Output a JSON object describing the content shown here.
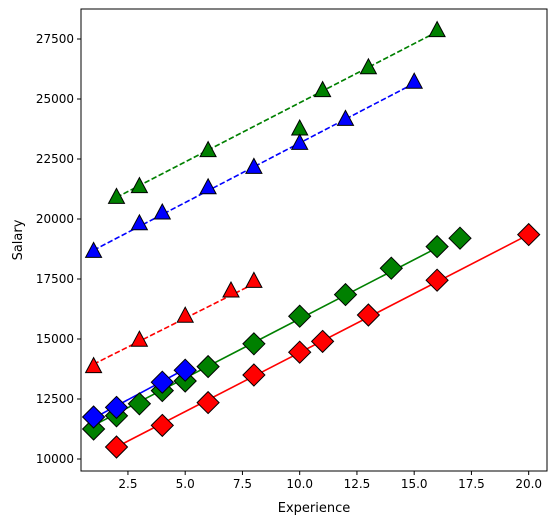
{
  "chart_data": {
    "type": "line",
    "xlabel": "Experience",
    "ylabel": "Salary",
    "xlim": [
      0.45,
      20.8
    ],
    "ylim": [
      9500,
      28750
    ],
    "x_ticks": [
      2.5,
      5.0,
      7.5,
      10.0,
      12.5,
      15.0,
      17.5,
      20.0
    ],
    "x_tick_labels": [
      "2.5",
      "5.0",
      "7.5",
      "10.0",
      "12.5",
      "15.0",
      "17.5",
      "20.0"
    ],
    "y_ticks": [
      10000,
      12500,
      15000,
      17500,
      20000,
      22500,
      25000,
      27500
    ],
    "y_tick_labels": [
      "10000",
      "12500",
      "15000",
      "17500",
      "20000",
      "22500",
      "25000",
      "27500"
    ],
    "grid": false,
    "series": [
      {
        "color": "#008000",
        "marker": "triangle",
        "linestyle": "dashed",
        "x": [
          2,
          3,
          6,
          10,
          11,
          13,
          16
        ],
        "y": [
          20900,
          21350,
          22850,
          23750,
          25350,
          26300,
          27850
        ],
        "fit": [
          [
            2,
            20900
          ],
          [
            16,
            27800
          ]
        ]
      },
      {
        "color": "#0000ff",
        "marker": "triangle",
        "linestyle": "dashed",
        "x": [
          1,
          3,
          4,
          6,
          8,
          10,
          12,
          15
        ],
        "y": [
          18650,
          19800,
          20250,
          21300,
          22150,
          23150,
          24150,
          25700
        ],
        "fit": [
          [
            1,
            18700
          ],
          [
            15,
            25650
          ]
        ]
      },
      {
        "color": "#ff0000",
        "marker": "triangle",
        "linestyle": "dashed",
        "x": [
          1,
          3,
          5,
          7,
          8
        ],
        "y": [
          13850,
          14950,
          15950,
          17000,
          17400
        ],
        "fit": [
          [
            1,
            13950
          ],
          [
            8,
            17300
          ]
        ]
      },
      {
        "color": "#008000",
        "marker": "diamond",
        "linestyle": "solid",
        "x": [
          1,
          2,
          3,
          4,
          5,
          6,
          8,
          10,
          12,
          14,
          16,
          17
        ],
        "y": [
          11250,
          11800,
          12300,
          12850,
          13250,
          13850,
          14800,
          15950,
          16850,
          17950,
          18850,
          19200
        ],
        "fit": [
          [
            1,
            11400
          ],
          [
            16,
            18800
          ]
        ]
      },
      {
        "color": "#ff0000",
        "marker": "diamond",
        "linestyle": "solid",
        "x": [
          2,
          4,
          6,
          8,
          10,
          11,
          13,
          16,
          20
        ],
        "y": [
          10500,
          11400,
          12350,
          13500,
          14450,
          14900,
          16000,
          17450,
          19350
        ],
        "fit": [
          [
            2,
            10500
          ],
          [
            20,
            19350
          ]
        ]
      },
      {
        "color": "#0000ff",
        "marker": "diamond",
        "linestyle": "solid",
        "x": [
          1,
          2,
          4,
          5
        ],
        "y": [
          11750,
          12150,
          13200,
          13700
        ],
        "fit": [
          [
            1,
            11700
          ],
          [
            5,
            13750
          ]
        ]
      }
    ]
  }
}
